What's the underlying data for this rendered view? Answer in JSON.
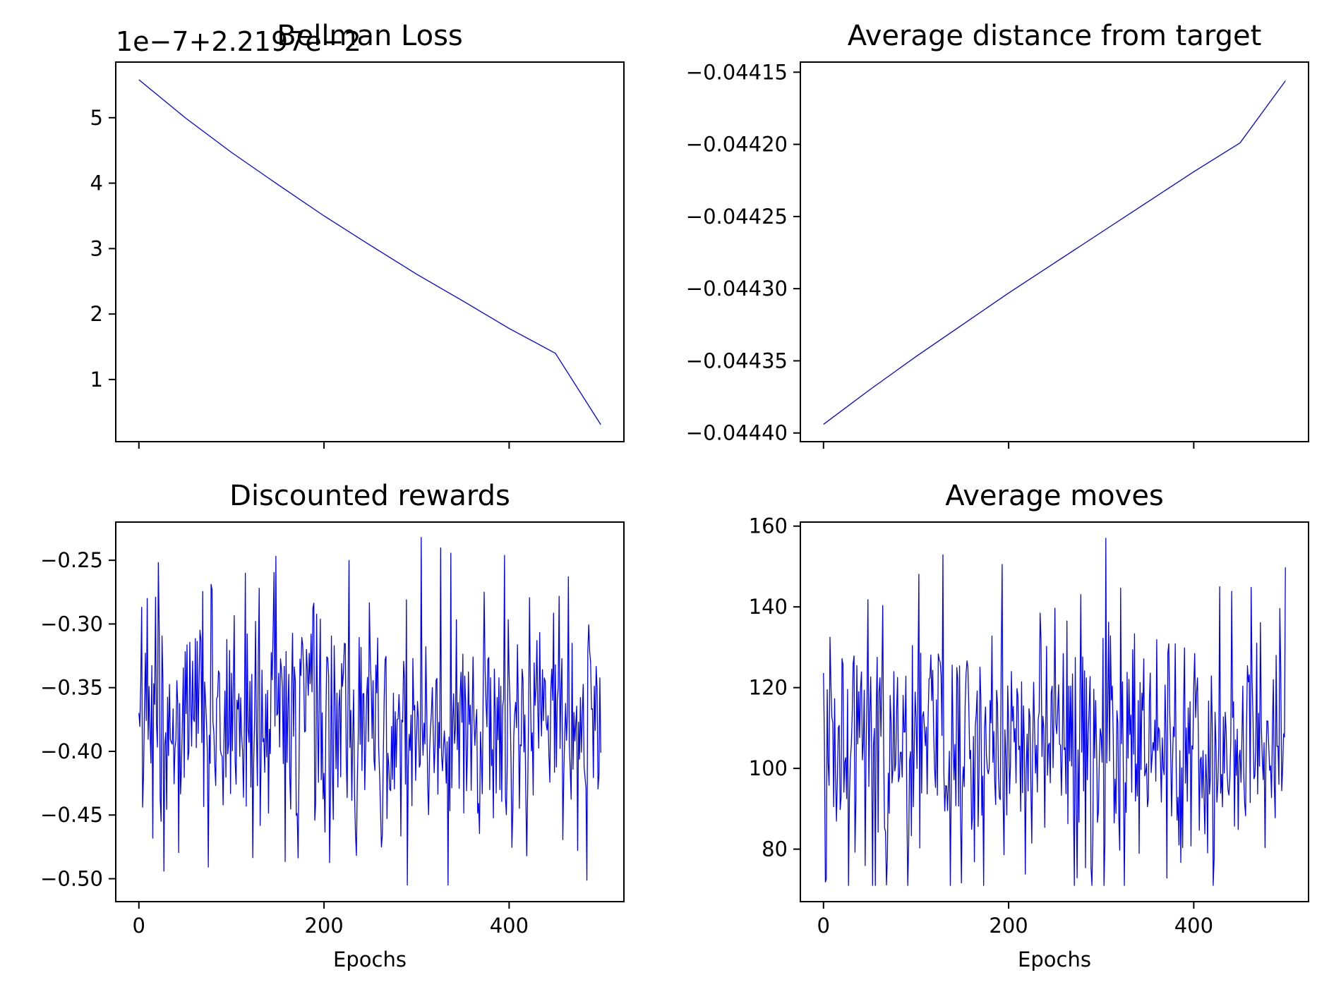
{
  "chart_data": [
    {
      "type": "line",
      "title": "Bellman Loss",
      "xlabel": "",
      "ylabel": "",
      "offset_text": "1e−7+2.2197e−2",
      "x": [
        0,
        50,
        100,
        150,
        200,
        250,
        300,
        350,
        400,
        450,
        499
      ],
      "series": [
        {
          "name": "",
          "values": [
            5.58,
            5.0,
            4.47,
            3.98,
            3.5,
            3.05,
            2.61,
            2.2,
            1.78,
            1.4,
            0.31
          ]
        }
      ],
      "xlim": [
        -25,
        524
      ],
      "ylim": [
        0.05,
        5.85
      ],
      "xticks": [
        0,
        200,
        400
      ],
      "xtick_labels_shown": false,
      "yticks": [
        1,
        2,
        3,
        4,
        5
      ],
      "ytick_labels": [
        "1",
        "2",
        "3",
        "4",
        "5"
      ],
      "color": "#0000ff",
      "grid": false
    },
    {
      "type": "line",
      "title": "Average distance from target",
      "xlabel": "",
      "ylabel": "",
      "x": [
        0,
        50,
        100,
        150,
        200,
        250,
        300,
        350,
        400,
        450,
        499
      ],
      "series": [
        {
          "name": "",
          "values": [
            -0.044394,
            -0.04437,
            -0.044347,
            -0.044325,
            -0.044303,
            -0.044282,
            -0.044261,
            -0.04424,
            -0.044219,
            -0.044199,
            -0.044156
          ]
        }
      ],
      "xlim": [
        -25,
        524
      ],
      "ylim": [
        -0.044406,
        -0.044143
      ],
      "xticks": [
        0,
        200,
        400
      ],
      "xtick_labels_shown": false,
      "yticks": [
        -0.0444,
        -0.04435,
        -0.0443,
        -0.04425,
        -0.0442,
        -0.04415
      ],
      "ytick_labels": [
        "−0.04440",
        "−0.04435",
        "−0.04430",
        "−0.04425",
        "−0.04420",
        "−0.04415"
      ],
      "color": "#0000ff",
      "grid": false
    },
    {
      "type": "line",
      "title": "Discounted rewards",
      "xlabel": "Epochs",
      "ylabel": "",
      "x_range": [
        0,
        499
      ],
      "noisy_summary": {
        "points": 500,
        "mean": -0.38,
        "min": -0.505,
        "max": -0.232,
        "approx_std": 0.045
      },
      "xlim": [
        -25,
        524
      ],
      "ylim": [
        -0.518,
        -0.22
      ],
      "xticks": [
        0,
        200,
        400
      ],
      "xtick_labels": [
        "0",
        "200",
        "400"
      ],
      "yticks": [
        -0.5,
        -0.45,
        -0.4,
        -0.35,
        -0.3,
        -0.25
      ],
      "ytick_labels": [
        "−0.50",
        "−0.45",
        "−0.40",
        "−0.35",
        "−0.30",
        "−0.25"
      ],
      "color": "#0000ff",
      "grid": false
    },
    {
      "type": "line",
      "title": "Average moves",
      "xlabel": "Epochs",
      "ylabel": "",
      "x_range": [
        0,
        499
      ],
      "noisy_summary": {
        "points": 500,
        "mean": 106,
        "min": 71,
        "max": 157,
        "approx_std": 15
      },
      "xlim": [
        -25,
        524
      ],
      "ylim": [
        67,
        161
      ],
      "xticks": [
        0,
        200,
        400
      ],
      "xtick_labels": [
        "0",
        "200",
        "400"
      ],
      "yticks": [
        80,
        100,
        120,
        140,
        160
      ],
      "ytick_labels": [
        "80",
        "100",
        "120",
        "140",
        "160"
      ],
      "color": "#0000ff",
      "grid": false
    }
  ]
}
